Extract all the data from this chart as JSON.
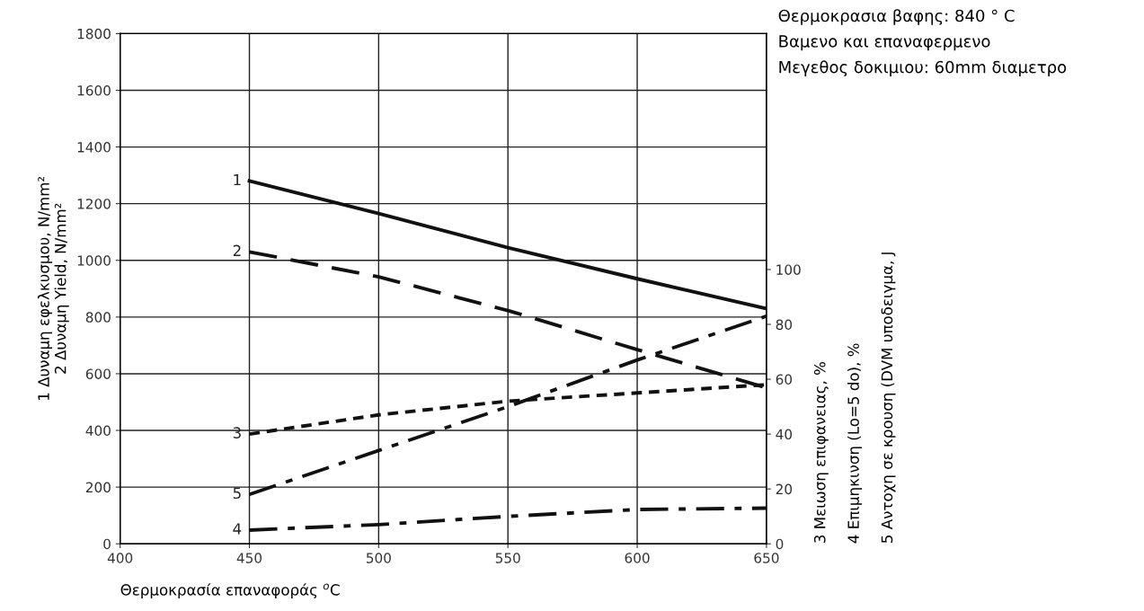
{
  "chart_data": {
    "type": "line",
    "xlabel": "Θερμοκρασία επαναφοράς $^{o}$C",
    "ylabel": "1 Δυναμη εφελκυσμου, N/mm²\n2 Δυναμη Yield, N/mm²",
    "y2label": "3 Μειωση επιφανειας, %\n\n4 Επιμηκινση (Lo=5 do), %\n\n5 Αντοχη σε κρουση (DVM υποδειγμα, J",
    "annotations": [
      "Θερμοκρασια βαφης: 840 ° C",
      "Βαμενο και επαναφερμενο",
      "Μεγεθος δοκιμιου: 60mm διαμετρο"
    ],
    "x": [
      450,
      500,
      550,
      600,
      650
    ],
    "series": [
      {
        "name": "1",
        "color": "#111111",
        "line_style": "solid",
        "values": [
          1280,
          1165,
          1045,
          935,
          830
        ]
      },
      {
        "name": "2",
        "color": "#111111",
        "line_style": "dashed",
        "values": [
          1030,
          942,
          823,
          685,
          550
        ]
      },
      {
        "name": "3",
        "color": "#111111",
        "line_style": "dotted",
        "axis": "y2",
        "values": [
          40,
          47,
          52,
          55,
          58
        ]
      },
      {
        "name": "4",
        "color": "#111111",
        "line_style": "dashdot",
        "axis": "y2",
        "values": [
          5,
          7,
          10,
          12.5,
          13
        ]
      },
      {
        "name": "5",
        "color": "#111111",
        "line_style": "dashdot",
        "axis": "y2",
        "values": [
          18,
          34,
          50,
          67,
          83
        ]
      }
    ],
    "xlim": [
      400,
      650
    ],
    "xticks": [
      400,
      450,
      500,
      550,
      600,
      650
    ],
    "ylim": [
      0,
      1800
    ],
    "yticks": [
      0,
      200,
      400,
      600,
      800,
      1000,
      1200,
      1400,
      1600,
      1800
    ],
    "y2lim": [
      0,
      186
    ],
    "y2ticks": [
      0,
      20,
      40,
      60,
      80,
      100
    ],
    "grid": true,
    "marker": "none",
    "legend": false
  }
}
